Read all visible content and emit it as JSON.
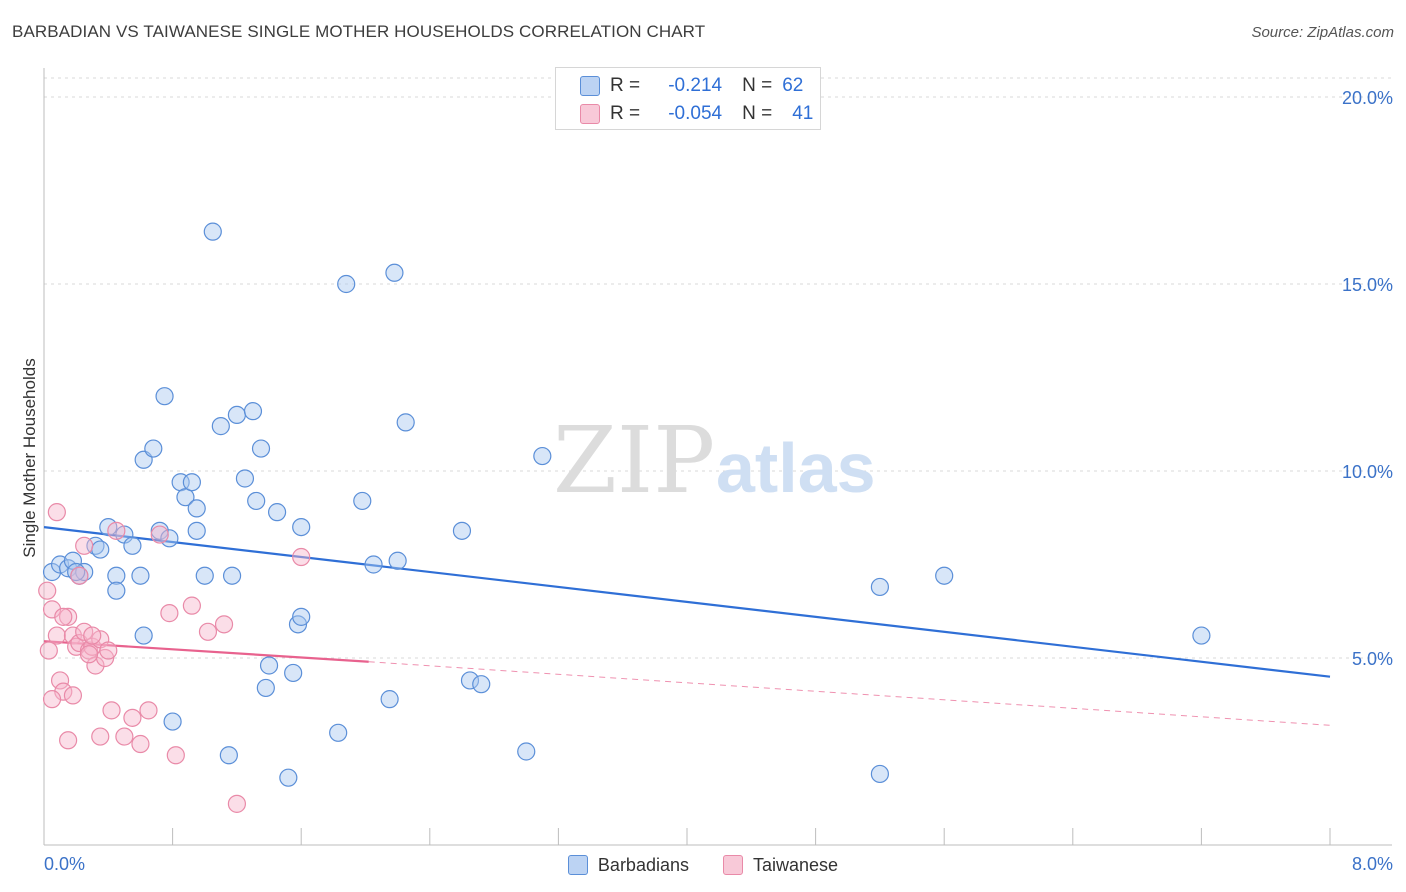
{
  "title": "BARBADIAN VS TAIWANESE SINGLE MOTHER HOUSEHOLDS CORRELATION CHART",
  "source": "Source: ZipAtlas.com",
  "watermark": {
    "zip": "ZIP",
    "atlas": "atlas"
  },
  "colors": {
    "blue_fill": "#a9c8f0",
    "blue_stroke": "#5b8fd8",
    "blue_line": "#2f6fd6",
    "pink_fill": "#f6b6cb",
    "pink_stroke": "#e98aa8",
    "pink_line": "#e8628e",
    "axis_label": "#3b72c8",
    "grid": "#d9d9d9"
  },
  "stats": [
    {
      "r_label": "R =",
      "r_value": "-0.214",
      "n_label": "N =",
      "n_value": "62",
      "color": "blue"
    },
    {
      "r_label": "R =",
      "r_value": "-0.054",
      "n_label": "N =",
      "n_value": "41",
      "color": "pink"
    }
  ],
  "chart_data": {
    "type": "scatter",
    "title": "BARBADIAN VS TAIWANESE SINGLE MOTHER HOUSEHOLDS CORRELATION CHART",
    "xlabel": "",
    "ylabel": "Single Mother Households",
    "xlim": [
      0,
      8
    ],
    "ylim": [
      0,
      20
    ],
    "x_tick_labels": [
      "0.0%",
      "8.0%"
    ],
    "y_ticks": [
      5,
      10,
      15,
      20
    ],
    "y_tick_labels": [
      "5.0%",
      "10.0%",
      "15.0%",
      "20.0%"
    ],
    "grid": true,
    "legend_position": "bottom",
    "series": [
      {
        "name": "Barbadians",
        "color": "blue",
        "trend": {
          "x": [
            0,
            8
          ],
          "y": [
            8.5,
            4.5
          ],
          "style": "solid"
        },
        "points": [
          [
            0.05,
            7.3
          ],
          [
            0.1,
            7.5
          ],
          [
            0.15,
            7.4
          ],
          [
            0.18,
            7.6
          ],
          [
            0.22,
            7.2
          ],
          [
            0.25,
            7.3
          ],
          [
            0.32,
            8.0
          ],
          [
            0.35,
            7.9
          ],
          [
            0.4,
            8.5
          ],
          [
            0.45,
            7.2
          ],
          [
            0.5,
            8.3
          ],
          [
            0.55,
            8.0
          ],
          [
            0.62,
            10.3
          ],
          [
            0.68,
            10.6
          ],
          [
            0.72,
            8.4
          ],
          [
            0.75,
            12.0
          ],
          [
            0.78,
            8.2
          ],
          [
            0.85,
            9.7
          ],
          [
            0.88,
            9.3
          ],
          [
            0.92,
            9.7
          ],
          [
            0.95,
            9.0
          ],
          [
            1.0,
            7.2
          ],
          [
            1.05,
            16.4
          ],
          [
            1.1,
            11.2
          ],
          [
            1.17,
            7.2
          ],
          [
            1.2,
            11.5
          ],
          [
            1.25,
            9.8
          ],
          [
            1.3,
            11.6
          ],
          [
            1.32,
            9.2
          ],
          [
            1.35,
            10.6
          ],
          [
            1.45,
            8.9
          ],
          [
            1.6,
            8.5
          ],
          [
            1.88,
            15.0
          ],
          [
            1.98,
            9.2
          ],
          [
            2.05,
            7.5
          ],
          [
            2.18,
            15.3
          ],
          [
            2.25,
            11.3
          ],
          [
            2.2,
            7.6
          ],
          [
            2.6,
            8.4
          ],
          [
            3.1,
            10.4
          ],
          [
            5.2,
            6.9
          ],
          [
            5.6,
            7.2
          ],
          [
            7.2,
            5.6
          ],
          [
            0.45,
            6.8
          ],
          [
            0.62,
            5.6
          ],
          [
            0.8,
            3.3
          ],
          [
            0.95,
            8.4
          ],
          [
            1.15,
            2.4
          ],
          [
            1.4,
            4.8
          ],
          [
            1.38,
            4.2
          ],
          [
            1.52,
            1.8
          ],
          [
            1.55,
            4.6
          ],
          [
            1.58,
            5.9
          ],
          [
            1.6,
            6.1
          ],
          [
            1.83,
            3.0
          ],
          [
            2.15,
            3.9
          ],
          [
            2.65,
            4.4
          ],
          [
            2.72,
            4.3
          ],
          [
            3.0,
            2.5
          ],
          [
            5.2,
            1.9
          ],
          [
            0.2,
            7.3
          ],
          [
            0.6,
            7.2
          ]
        ]
      },
      {
        "name": "Taiwanese",
        "color": "pink",
        "trend": {
          "x": [
            0,
            2.02
          ],
          "y": [
            5.45,
            4.9
          ],
          "style": "solid",
          "extension": {
            "x": [
              2.02,
              8
            ],
            "y": [
              4.9,
              3.2
            ],
            "style": "dashed"
          }
        },
        "points": [
          [
            0.02,
            6.8
          ],
          [
            0.03,
            5.2
          ],
          [
            0.05,
            6.3
          ],
          [
            0.08,
            5.6
          ],
          [
            0.1,
            4.4
          ],
          [
            0.12,
            4.1
          ],
          [
            0.15,
            6.1
          ],
          [
            0.18,
            5.6
          ],
          [
            0.2,
            5.3
          ],
          [
            0.22,
            5.4
          ],
          [
            0.25,
            5.7
          ],
          [
            0.28,
            5.2
          ],
          [
            0.3,
            5.3
          ],
          [
            0.32,
            4.8
          ],
          [
            0.35,
            5.5
          ],
          [
            0.38,
            5.0
          ],
          [
            0.42,
            3.6
          ],
          [
            0.45,
            8.4
          ],
          [
            0.5,
            2.9
          ],
          [
            0.55,
            3.4
          ],
          [
            0.6,
            2.7
          ],
          [
            0.65,
            3.6
          ],
          [
            0.72,
            8.3
          ],
          [
            0.78,
            6.2
          ],
          [
            0.82,
            2.4
          ],
          [
            0.92,
            6.4
          ],
          [
            1.02,
            5.7
          ],
          [
            1.12,
            5.9
          ],
          [
            1.2,
            1.1
          ],
          [
            1.6,
            7.7
          ],
          [
            0.08,
            8.9
          ],
          [
            0.15,
            2.8
          ],
          [
            0.18,
            4.0
          ],
          [
            0.22,
            7.2
          ],
          [
            0.25,
            8.0
          ],
          [
            0.28,
            5.1
          ],
          [
            0.3,
            5.6
          ],
          [
            0.05,
            3.9
          ],
          [
            0.35,
            2.9
          ],
          [
            0.12,
            6.1
          ],
          [
            0.4,
            5.2
          ]
        ]
      }
    ]
  }
}
